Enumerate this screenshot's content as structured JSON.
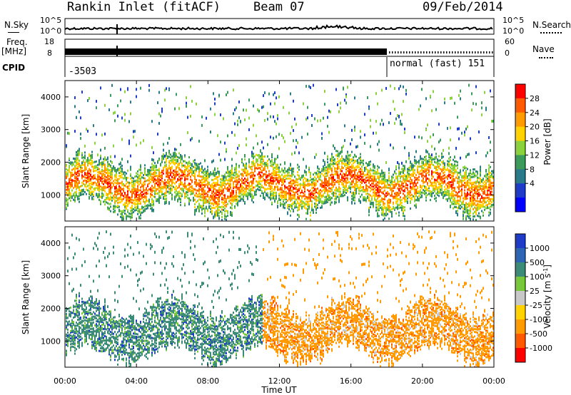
{
  "header": {
    "station": "Rankin Inlet (fitACF)",
    "beam": "Beam 07",
    "date": "09/Feb/2014"
  },
  "status_panels": {
    "nsky_label": "N.Sky",
    "nsearch_label": "N.Search",
    "nsky_ticks": [
      "10^5",
      "10^0"
    ],
    "nsearch_ticks": [
      "10^5",
      "10^0"
    ],
    "freq_label": "Freq.",
    "freq_unit": "[MHz]",
    "freq_ticks": [
      "18",
      "8"
    ],
    "nave_label": "Nave",
    "nave_ticks": [
      "60",
      "0"
    ],
    "cpid_label": "CPID",
    "cpid_value": "-3503",
    "mode_text": "normal (fast) 151"
  },
  "chart_data": [
    {
      "type": "heatmap",
      "name": "power",
      "ylabel": "Slant Range [km]",
      "xlabel": "",
      "ylim": [
        200,
        4500
      ],
      "yticks": [
        1000,
        2000,
        3000,
        4000
      ],
      "xlim_hours": [
        0,
        24
      ],
      "colorbar": {
        "label": "Power [dB]",
        "ticks": [
          "28",
          "24",
          "20",
          "16",
          "12",
          "8",
          "4"
        ],
        "colors": [
          "#ff0000",
          "#ff5a00",
          "#ff9a00",
          "#ffd200",
          "#8cd23c",
          "#3c9a5a",
          "#2a7a8c",
          "#1e3cc8",
          "#0000ff"
        ]
      }
    },
    {
      "type": "heatmap",
      "name": "velocity",
      "ylabel": "Slant Range [km]",
      "xlabel": "Time UT",
      "ylim": [
        200,
        4500
      ],
      "yticks": [
        1000,
        2000,
        3000,
        4000
      ],
      "xticks": [
        "00:00",
        "04:00",
        "08:00",
        "12:00",
        "16:00",
        "20:00",
        "00:00"
      ],
      "xlim_hours": [
        0,
        24
      ],
      "colorbar": {
        "label": "Velocity [m s",
        "label_sup": "-1",
        "label_end": "]",
        "ticks": [
          "1000",
          "500",
          "100",
          "25",
          "-25",
          "-100",
          "-500",
          "-1000"
        ],
        "colors": [
          "#1e3cc8",
          "#2e64b4",
          "#3c8a78",
          "#78c83c",
          "#c8c8c8",
          "#ffd200",
          "#ff9a00",
          "#ff5a00",
          "#ff0000"
        ]
      }
    }
  ]
}
